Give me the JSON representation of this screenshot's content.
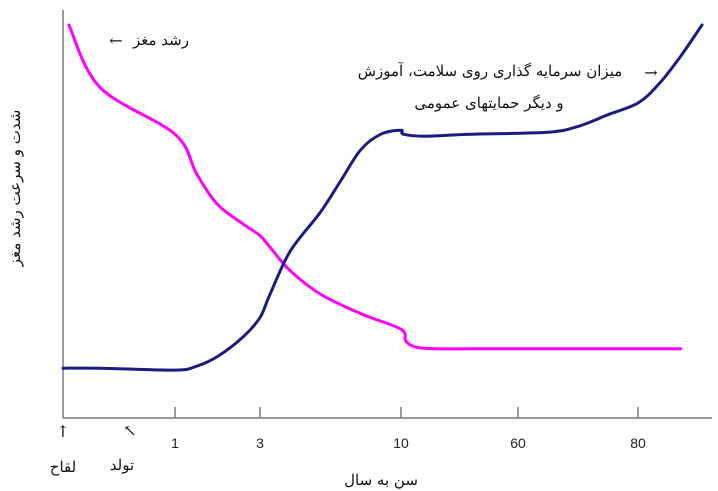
{
  "chart_data": {
    "type": "line",
    "title": "",
    "xlabel": "سن به سال",
    "ylabel": "شدت و سرعت رشد مغز",
    "x_ticks": [
      "1",
      "3",
      "10",
      "60",
      "80"
    ],
    "origin_annotations": [
      {
        "text": "لقاح",
        "arrow": "↑"
      },
      {
        "text": "تولد",
        "arrow": "↖"
      }
    ],
    "series": [
      {
        "name": "رشد مغز",
        "color": "#ff00ff",
        "arrow": "←",
        "points": [
          [
            0.08,
            100
          ],
          [
            0.5,
            84
          ],
          [
            1.0,
            72
          ],
          [
            1.5,
            62
          ],
          [
            2.0,
            54
          ],
          [
            2.6,
            49
          ],
          [
            3.0,
            46
          ],
          [
            3.5,
            43
          ],
          [
            4.5,
            37
          ],
          [
            6,
            31
          ],
          [
            8,
            26
          ],
          [
            10,
            22
          ],
          [
            12,
            19
          ],
          [
            16,
            17.5
          ],
          [
            25,
            17
          ],
          [
            50,
            17
          ],
          [
            70,
            17
          ],
          [
            85,
            17
          ],
          [
            90,
            17
          ]
        ]
      },
      {
        "name": "میزان سرمایه گذاری روی سلامت، آموزش و دیگر حمایتهای عمومی",
        "name_lines": [
          "میزان سرمایه گذاری روی سلامت، آموزش",
          "و دیگر حمایتهای عمومی"
        ],
        "color": "#1c1c80",
        "arrow": "→",
        "points": [
          [
            0,
            12
          ],
          [
            0.5,
            12
          ],
          [
            1.0,
            11.5
          ],
          [
            1.5,
            12.5
          ],
          [
            2.0,
            15
          ],
          [
            2.6,
            20
          ],
          [
            3.0,
            25
          ],
          [
            3.5,
            31
          ],
          [
            4.5,
            42
          ],
          [
            6,
            52
          ],
          [
            7,
            60
          ],
          [
            8,
            68
          ],
          [
            9,
            72
          ],
          [
            10,
            73
          ],
          [
            11,
            72
          ],
          [
            20,
            71.5
          ],
          [
            40,
            72
          ],
          [
            65,
            72.5
          ],
          [
            70,
            74
          ],
          [
            75,
            77
          ],
          [
            80,
            80
          ],
          [
            85,
            85
          ],
          [
            90,
            92
          ],
          [
            95,
            100
          ]
        ]
      }
    ]
  }
}
